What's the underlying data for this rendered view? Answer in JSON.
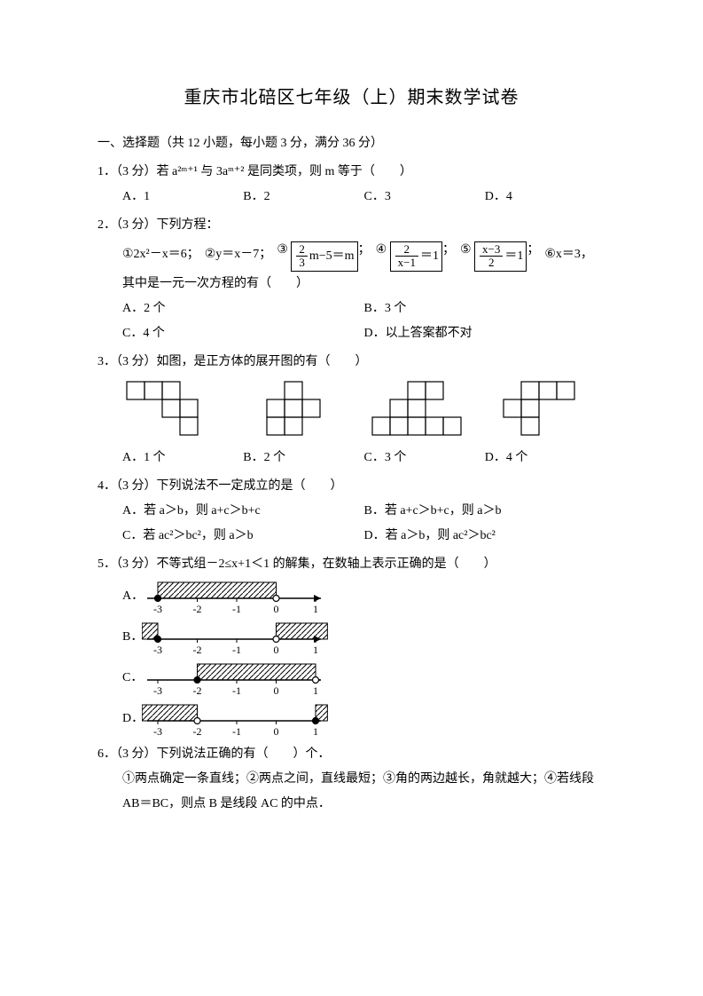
{
  "title": "重庆市北碚区七年级（上）期末数学试卷",
  "section1": "一、选择题（共 12 小题，每小题 3 分，满分 36 分）",
  "q1": {
    "stem": "1．（3 分）若 a²ᵐ⁺¹ 与 3aᵐ⁺² 是同类项，则 m 等于（　　）",
    "A": "A．1",
    "B": "B．2",
    "C": "C．3",
    "D": "D．4"
  },
  "q2": {
    "stem": "2．（3 分）下列方程：",
    "e1": "①2x²－x＝6；",
    "e2": "②y＝x－7；",
    "e3_pre": "③",
    "e3_num": "2",
    "e3_den": "3",
    "e3_post": "m−5＝m",
    "e4_pre": "④",
    "e4_num": "2",
    "e4_den": "x−1",
    "e4_post": "＝1",
    "e5_pre": "⑤",
    "e5_num": "x−3",
    "e5_den": "2",
    "e5_post": "＝1",
    "e6": "⑥x＝3，",
    "tail": "其中是一元一次方程的有（　　）",
    "A": "A．2 个",
    "B": "B．3 个",
    "C": "C．4 个",
    "D": "D．以上答案都不对"
  },
  "q3": {
    "stem": "3．（3 分）如图，是正方体的展开图的有（　　）",
    "A": "A．1 个",
    "B": "B．2 个",
    "C": "C．3 个",
    "D": "D．4 个"
  },
  "q4": {
    "stem": "4．（3 分）下列说法不一定成立的是（　　）",
    "A": "A．若 a＞b，则 a+c＞b+c",
    "B": "B．若 a+c＞b+c，则 a＞b",
    "C": "C．若 ac²＞bc²，则 a＞b",
    "D": "D．若 a＞b，则 ac²＞bc²"
  },
  "q5": {
    "stem": "5．（3 分）不等式组－2≤x+1＜1 的解集，在数轴上表示正确的是（　　）",
    "A": "A．",
    "B": "B．",
    "C": "C．",
    "D": "D．",
    "ticks": [
      "-3",
      "-2",
      "-1",
      "0",
      "1"
    ]
  },
  "q6": {
    "stem": "6．（3 分）下列说法正确的有（　　）个．",
    "line1": "①两点确定一条直线；②两点之间，直线最短；③角的两边越长，角就越大；④若线段",
    "line2": "AB＝BC，则点 B 是线段 AC 的中点．"
  },
  "colors": {
    "text": "#000000",
    "bg": "#ffffff",
    "line": "#000000",
    "hatch": "#000000"
  },
  "net_cell": 20
}
